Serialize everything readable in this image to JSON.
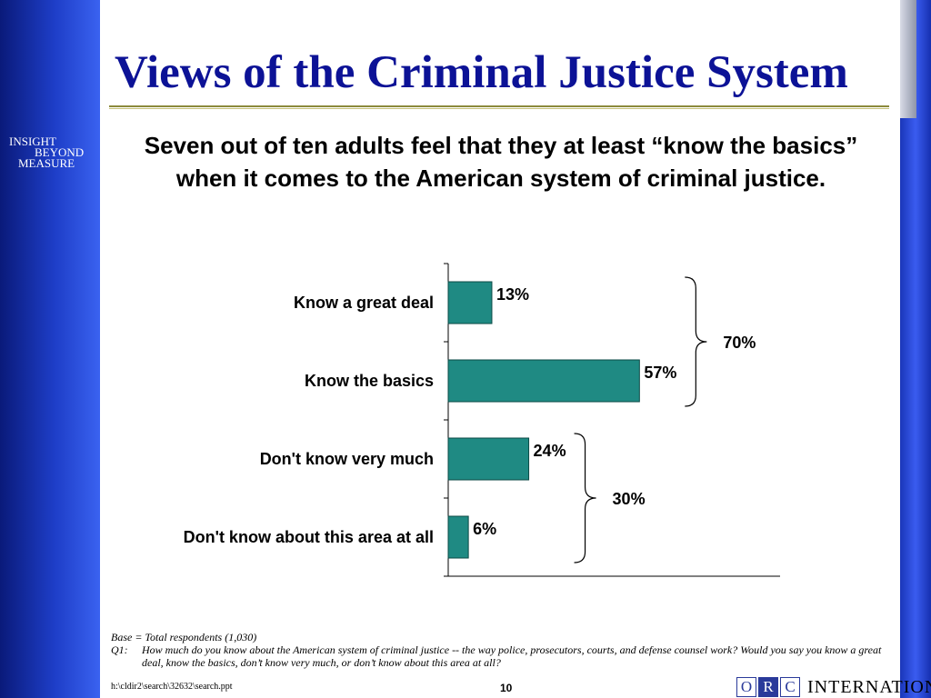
{
  "slide": {
    "title": "Views of the Criminal Justice System",
    "subtitle": "Seven out of ten adults feel that they at least “know the basics” when it comes to the American system of criminal justice.",
    "tagline": [
      "INSIGHT",
      "BEYOND",
      "MEASURE"
    ],
    "base_note": "Base = Total respondents (1,030)",
    "question_label": "Q1:",
    "question_text": "How much do you know about the American system of criminal justice -- the way police, prosecutors, courts, and defense counsel work?  Would you say you know a great deal, know the basics, don’t know very much, or don’t know about this area at all?",
    "file_path": "h:\\cldir2\\search\\32632\\search.ppt",
    "page_number": "10",
    "logo": {
      "letters": [
        "O",
        "R",
        "C"
      ],
      "word": "INTERNATIONAL",
      "mark": "®"
    },
    "colors": {
      "title": "#0c1296",
      "bar": "#1f8a83",
      "sidebar": "#1e3ec8"
    }
  },
  "chart_data": {
    "type": "bar",
    "orientation": "horizontal",
    "categories": [
      "Know a great deal",
      "Know the basics",
      "Don't know very much",
      "Don't know about this area at all"
    ],
    "values": [
      13,
      57,
      24,
      6
    ],
    "value_labels": [
      "13%",
      "57%",
      "24%",
      "6%"
    ],
    "xlim": [
      0,
      100
    ],
    "groups": [
      {
        "label": "70%",
        "value": 70,
        "from": 0,
        "to": 1
      },
      {
        "label": "30%",
        "value": 30,
        "from": 2,
        "to": 3
      }
    ],
    "grid": false,
    "legend": "none"
  }
}
